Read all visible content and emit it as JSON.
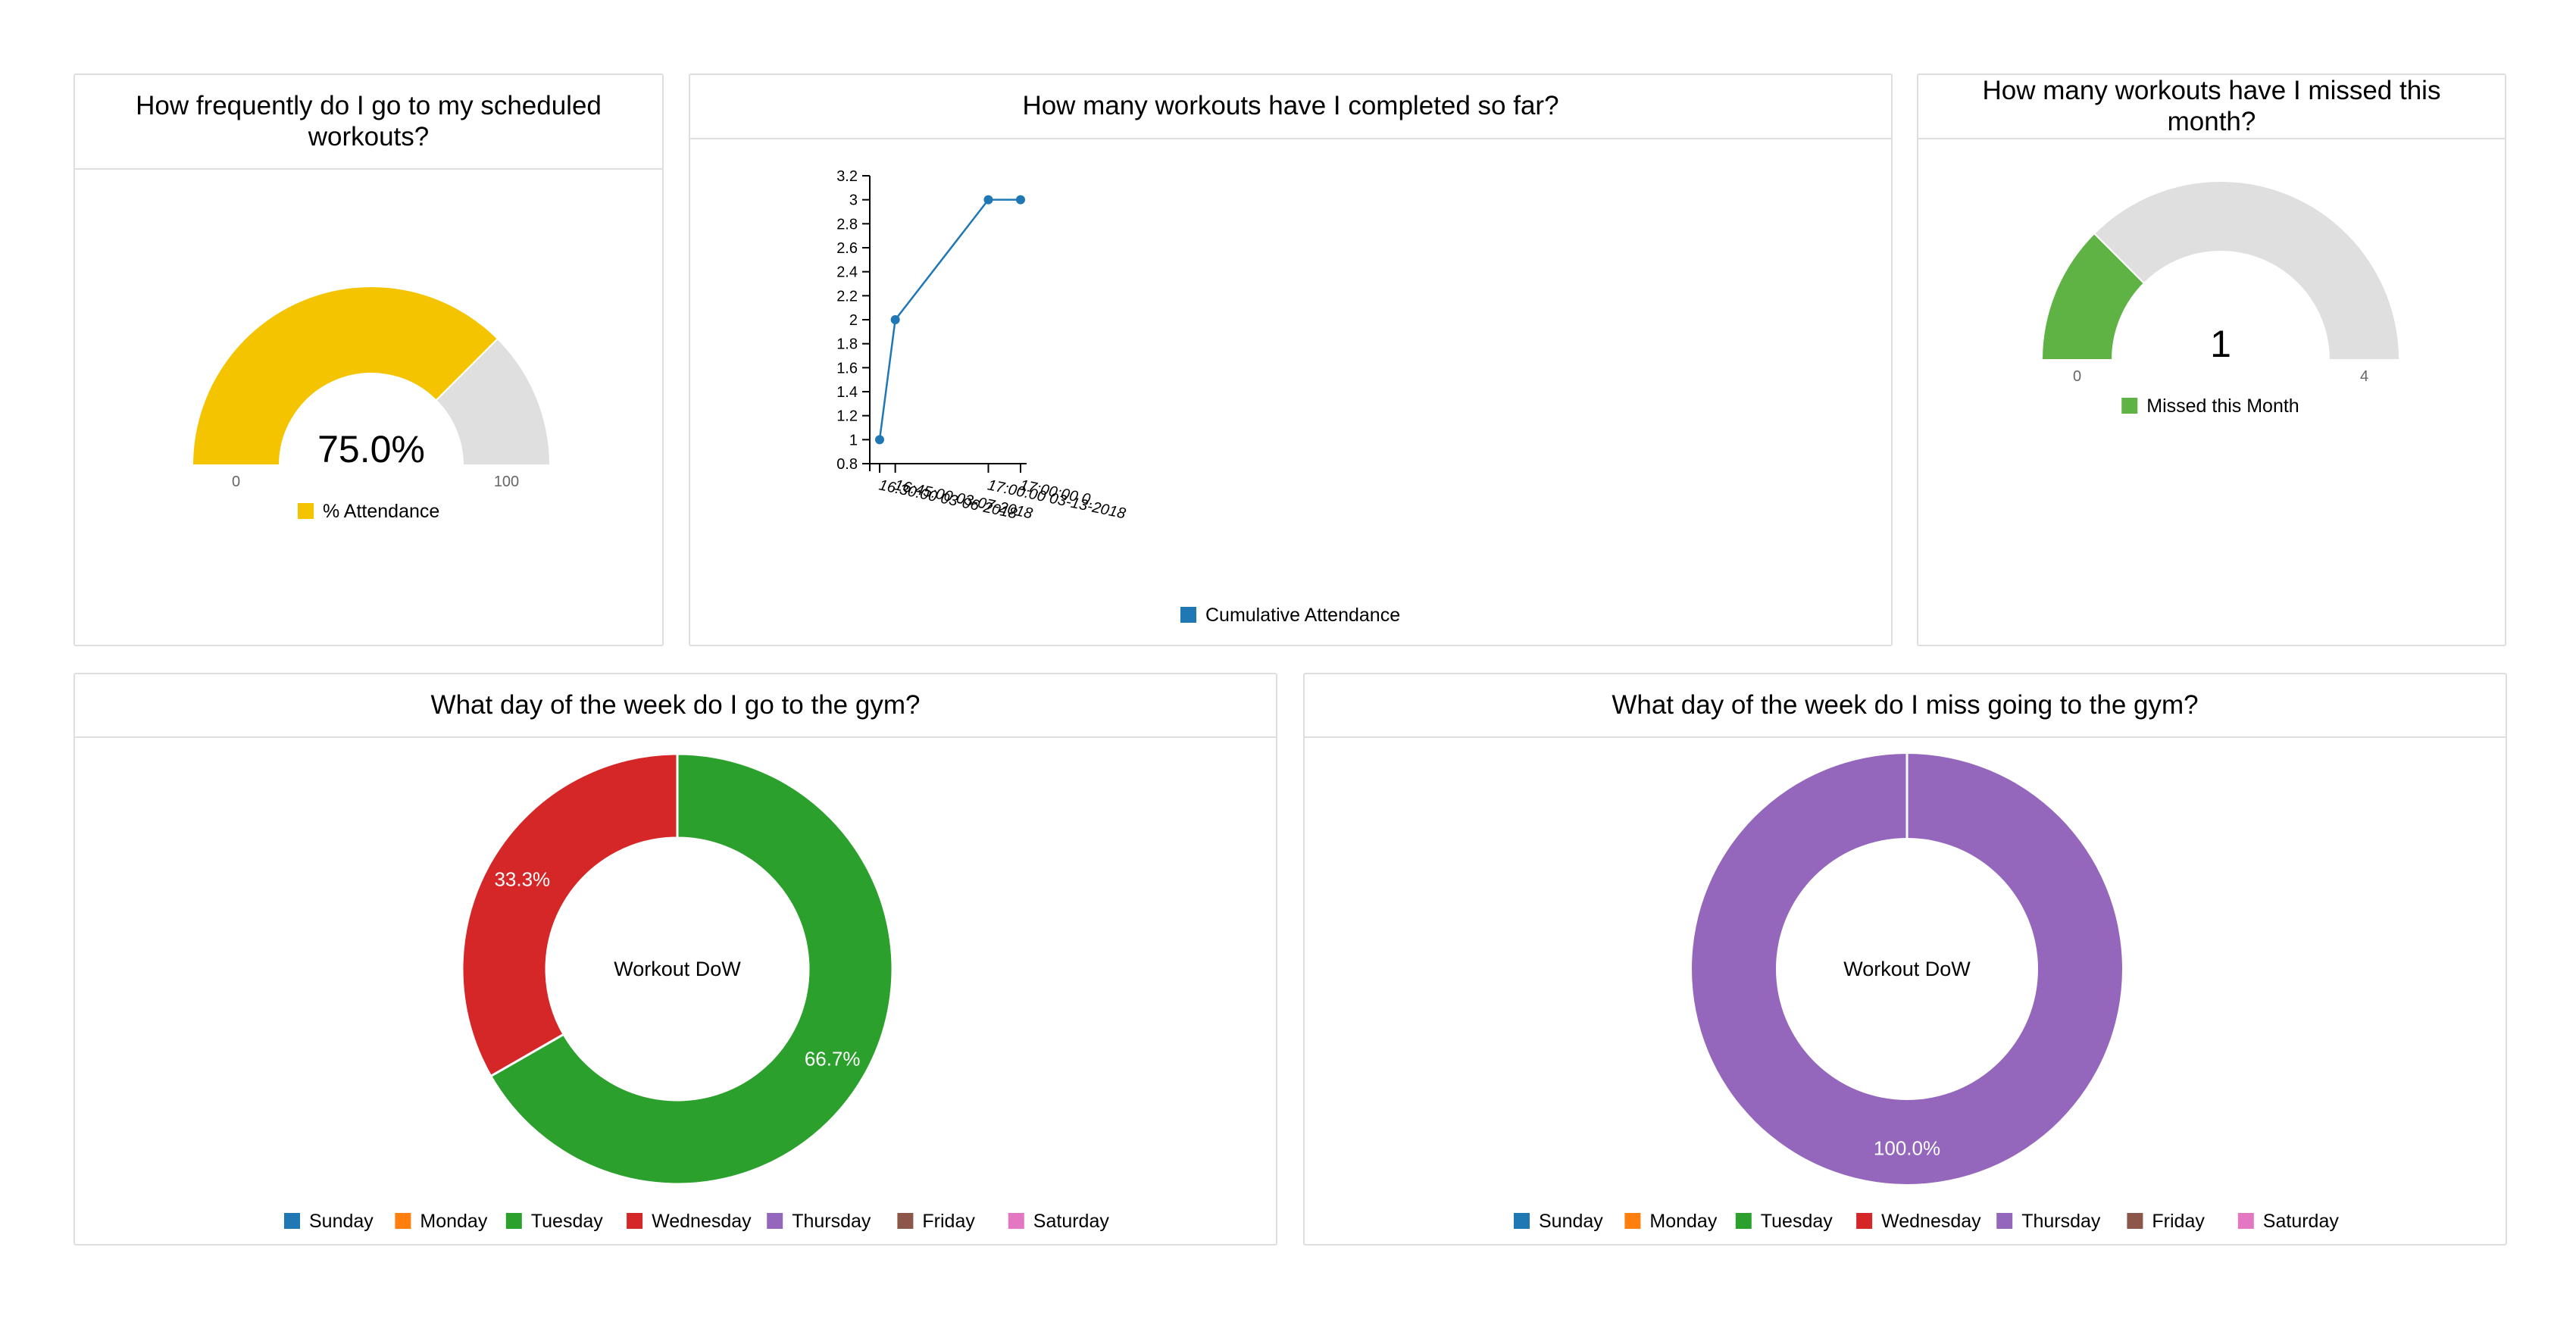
{
  "colors": {
    "yellow": "#f5c400",
    "gray": "#dfdfdf",
    "blue": "#1f77b4",
    "green_gauge": "#5fb244",
    "sunday": "#1f77b4",
    "monday": "#ff7f0e",
    "tuesday": "#2ca02c",
    "wednesday": "#d62728",
    "thursday": "#9467bd",
    "friday": "#8c564b",
    "saturday": "#e377c2"
  },
  "cards": {
    "attendance": {
      "title": "How frequently do I go to my scheduled workouts?"
    },
    "completed": {
      "title": "How many workouts have I completed so far?"
    },
    "missed": {
      "title": "How many workouts have I missed this month?"
    },
    "dow_go": {
      "title": "What day of the week do I go to the gym?"
    },
    "dow_miss": {
      "title": "What day of the week do I miss going to the gym?"
    }
  },
  "chart_data": [
    {
      "type": "gauge",
      "value": 75.0,
      "value_label": "75.0%",
      "min": 0,
      "max": 100,
      "min_label": "0",
      "max_label": "100",
      "legend": "% Attendance",
      "color": "#f5c400"
    },
    {
      "type": "line",
      "x": [
        "16:30:00 03-06-2018",
        "16:45:00 03-07-2018",
        "17:00:00 03-13-2018",
        "17:00:00 0."
      ],
      "x_days": [
        0,
        1.01,
        7.02,
        9.1
      ],
      "values": [
        1,
        2,
        3,
        3
      ],
      "ylim": [
        0.8,
        3.2
      ],
      "yticks": [
        "0.8",
        "1",
        "1.2",
        "1.4",
        "1.6",
        "1.8",
        "2",
        "2.2",
        "2.4",
        "2.6",
        "2.8",
        "3",
        "3.2"
      ],
      "series": [
        {
          "name": "Cumulative Attendance",
          "color": "#1f77b4"
        }
      ],
      "legend": "bottom"
    },
    {
      "type": "gauge",
      "value": 1,
      "value_label": "1",
      "min": 0,
      "max": 4,
      "min_label": "0",
      "max_label": "4",
      "legend": "Missed this Month",
      "color": "#5fb244"
    },
    {
      "type": "pie",
      "center_label": "Workout DoW",
      "slices": [
        {
          "name": "Tuesday",
          "value": 66.7,
          "label": "66.7%",
          "color": "#2ca02c"
        },
        {
          "name": "Wednesday",
          "value": 33.3,
          "label": "33.3%",
          "color": "#d62728"
        }
      ],
      "legend": [
        "Sunday",
        "Monday",
        "Tuesday",
        "Wednesday",
        "Thursday",
        "Friday",
        "Saturday"
      ]
    },
    {
      "type": "pie",
      "center_label": "Workout DoW",
      "slices": [
        {
          "name": "Thursday",
          "value": 100.0,
          "label": "100.0%",
          "color": "#9467bd"
        }
      ],
      "legend": [
        "Sunday",
        "Monday",
        "Tuesday",
        "Wednesday",
        "Thursday",
        "Friday",
        "Saturday"
      ]
    }
  ]
}
